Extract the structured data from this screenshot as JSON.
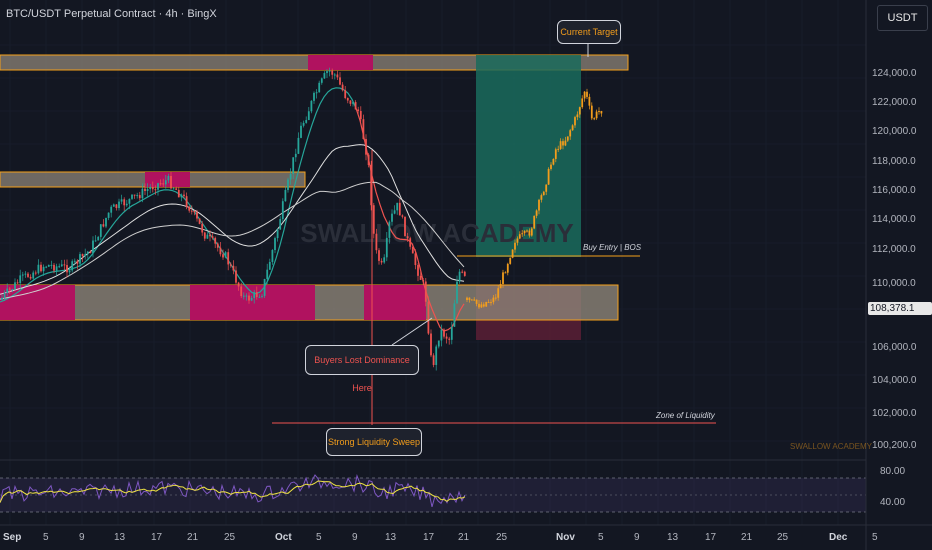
{
  "header": {
    "title": "BTC/USDT Perpetual Contract · 4h · BingX"
  },
  "currency": {
    "label": "USDT"
  },
  "price_axis": {
    "ticks": [
      "124,000.0",
      "122,000.0",
      "120,000.0",
      "118,000.0",
      "116,000.0",
      "114,000.0",
      "112,000.0",
      "110,000.0",
      "106,000.0",
      "104,000.0",
      "102,000.0",
      "100,200.0"
    ],
    "current_price": "108,378.1"
  },
  "rsi_axis": {
    "ticks": [
      "80.00",
      "40.00"
    ]
  },
  "time_axis": {
    "labels": [
      "Sep",
      "5",
      "9",
      "13",
      "17",
      "21",
      "25",
      "Oct",
      "5",
      "9",
      "13",
      "17",
      "21",
      "25",
      "Nov",
      "5",
      "9",
      "13",
      "17",
      "21",
      "25",
      "Dec",
      "5"
    ]
  },
  "annotations": {
    "current_target": "Current Target",
    "buy_entry": "Buy Entry | BOS",
    "buyers_lost": "Buyers Lost Dominance Here",
    "zone_liquidity": "Zone of Liquidity",
    "strong_sweep": "Strong Liquidity Sweep",
    "watermark_center": "SWALLOW ACADEMY",
    "watermark_corner": "SWALLOW ACADEMY"
  },
  "colors": {
    "background": "#131722",
    "bull_candle": "#26a69a",
    "bear_candle": "#ef5350",
    "projection": "#f29d1c",
    "zone_fill": "#8d8478",
    "zone_border": "#f6a01a",
    "magenta": "#b0125f",
    "target_zone": "#1a6b5c",
    "stop_zone": "#5b1f35",
    "rsi_line": "#7e57c2",
    "rsi_signal": "#f0e442",
    "ma_green": "#26a69a",
    "ma_white": "#e0e0e0"
  }
}
